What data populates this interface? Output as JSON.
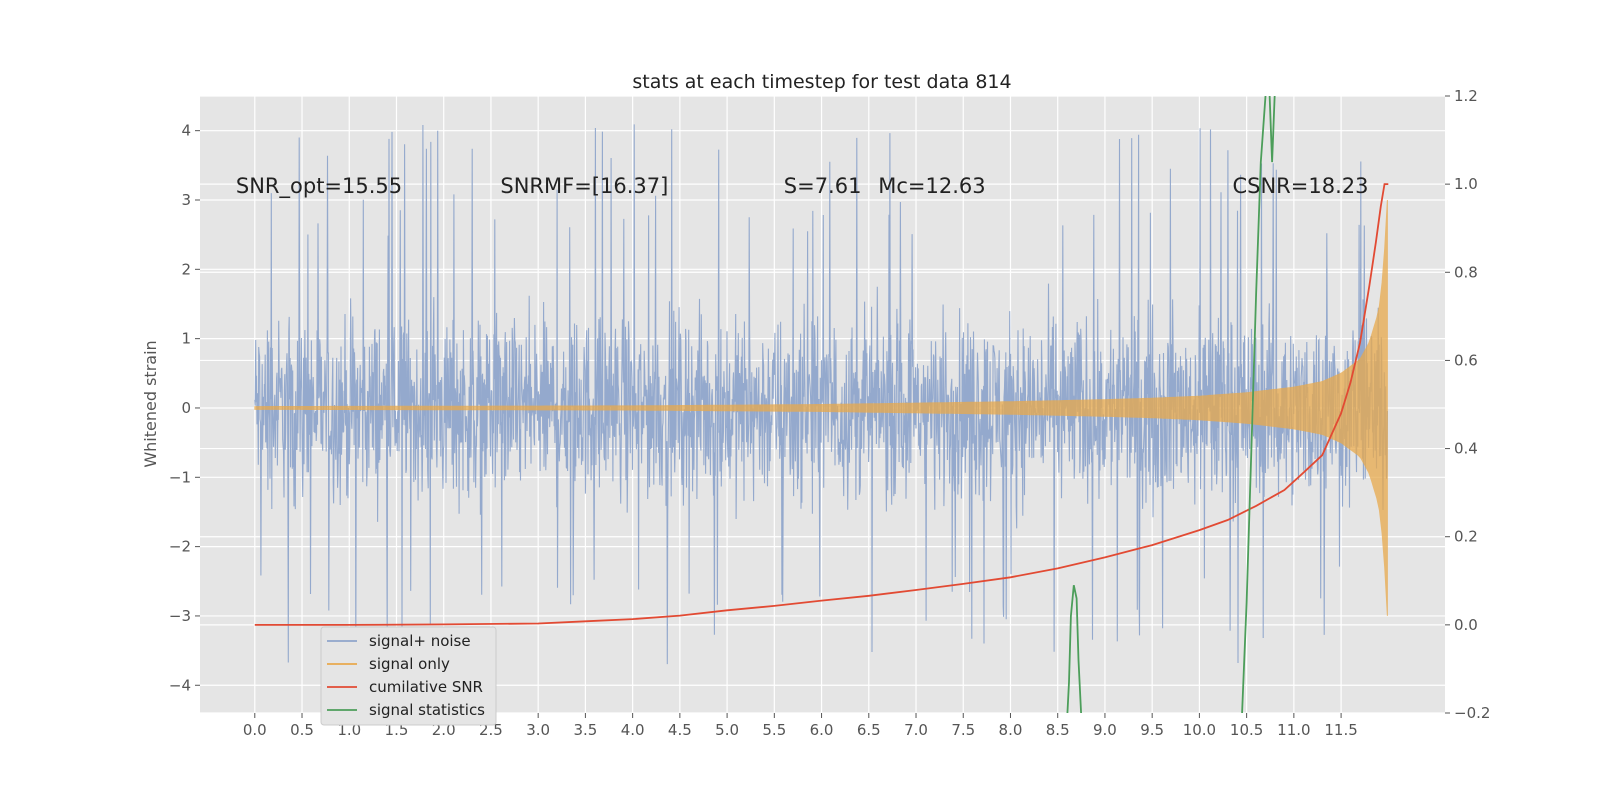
{
  "chart_data": {
    "type": "line",
    "title": "stats at each timestep for test data 814",
    "ylabel": "Whitened strain",
    "xlim": [
      -0.58,
      12.6
    ],
    "ylim": [
      -4.4,
      4.5
    ],
    "y2lim": [
      -0.2,
      1.2
    ],
    "grid": true,
    "legend_placement": "lower-left",
    "x_ticks": [
      "0.0",
      "0.5",
      "1.0",
      "1.5",
      "2.0",
      "2.5",
      "3.0",
      "3.5",
      "4.0",
      "4.5",
      "5.0",
      "5.5",
      "6.0",
      "6.5",
      "7.0",
      "7.5",
      "8.0",
      "8.5",
      "9.0",
      "9.5",
      "10.0",
      "10.5",
      "11.0",
      "11.5"
    ],
    "x_tick_values": [
      0.0,
      0.5,
      1.0,
      1.5,
      2.0,
      2.5,
      3.0,
      3.5,
      4.0,
      4.5,
      5.0,
      5.5,
      6.0,
      6.5,
      7.0,
      7.5,
      8.0,
      8.5,
      9.0,
      9.5,
      10.0,
      10.5,
      11.0,
      11.5
    ],
    "y_ticks": [
      "4",
      "3",
      "2",
      "1",
      "0",
      "−1",
      "−2",
      "−3",
      "−4"
    ],
    "y_tick_values": [
      4,
      3,
      2,
      1,
      0,
      -1,
      -2,
      -3,
      -4
    ],
    "y2_ticks": [
      "1.2",
      "1.0",
      "0.8",
      "0.6",
      "0.4",
      "0.2",
      "0.0",
      "−0.2"
    ],
    "y2_tick_values": [
      1.2,
      1.0,
      0.8,
      0.6,
      0.4,
      0.2,
      0.0,
      -0.2
    ],
    "annotations": [
      {
        "name": "snr-opt",
        "text": "SNR_opt=15.55",
        "x": -0.2,
        "y": 3.2
      },
      {
        "name": "snr-mf",
        "text": "SNRMF=[16.37]",
        "x": 2.6,
        "y": 3.2
      },
      {
        "name": "s-stat",
        "text": "S=7.61",
        "x": 5.6,
        "y": 3.2
      },
      {
        "name": "chirp-mass",
        "text": "Mc=12.63",
        "x": 6.6,
        "y": 3.2
      },
      {
        "name": "csnr",
        "text": "CSNR=18.23",
        "x": 10.35,
        "y": 3.2
      }
    ],
    "series": [
      {
        "name": "signal+ noise",
        "axis": "left",
        "color": "#8fa5cb",
        "kind": "noisy-band",
        "x_range": [
          0.0,
          11.99
        ],
        "typical_range": [
          -1.9,
          1.9
        ],
        "peak_range": [
          -3.7,
          4.1
        ]
      },
      {
        "name": "signal only",
        "axis": "left",
        "color": "#e8a94c",
        "kind": "chirp-envelope",
        "x": [
          0.0,
          4.0,
          6.0,
          7.0,
          8.0,
          9.0,
          9.5,
          10.0,
          10.5,
          11.0,
          11.3,
          11.5,
          11.7,
          11.8,
          11.9,
          11.95,
          11.99
        ],
        "envelope": [
          0.02,
          0.03,
          0.05,
          0.07,
          0.09,
          0.12,
          0.14,
          0.17,
          0.22,
          0.3,
          0.38,
          0.5,
          0.7,
          0.95,
          1.4,
          2.0,
          3.0
        ]
      },
      {
        "name": "cumilative SNR",
        "axis": "right",
        "color": "#e24a33",
        "x": [
          0.0,
          1.0,
          2.0,
          3.0,
          3.5,
          4.0,
          4.5,
          5.0,
          5.5,
          6.0,
          6.5,
          7.0,
          7.5,
          8.0,
          8.5,
          9.0,
          9.5,
          10.0,
          10.3,
          10.6,
          10.9,
          11.1,
          11.3,
          11.5,
          11.6,
          11.7,
          11.8,
          11.87,
          11.92,
          11.96,
          12.0
        ],
        "values": [
          0.0,
          0.0,
          0.001,
          0.003,
          0.008,
          0.013,
          0.021,
          0.033,
          0.043,
          0.055,
          0.066,
          0.079,
          0.093,
          0.108,
          0.128,
          0.153,
          0.181,
          0.215,
          0.238,
          0.27,
          0.306,
          0.345,
          0.385,
          0.48,
          0.55,
          0.64,
          0.77,
          0.87,
          0.95,
          1.0,
          1.0
        ]
      },
      {
        "name": "signal statistics",
        "axis": "right",
        "color": "#4c9e5a",
        "segments": [
          {
            "x": [
              8.6,
              8.62,
              8.64,
              8.67,
              8.7,
              8.72,
              8.75
            ],
            "values": [
              -0.21,
              -0.13,
              0.02,
              0.09,
              0.06,
              -0.08,
              -0.21
            ]
          },
          {
            "x": [
              10.45,
              10.5,
              10.55,
              10.6,
              10.65,
              10.7,
              10.74,
              10.77,
              10.8
            ],
            "values": [
              -0.21,
              0.05,
              0.4,
              0.75,
              1.05,
              1.2,
              1.22,
              1.05,
              1.22
            ]
          }
        ]
      }
    ]
  }
}
